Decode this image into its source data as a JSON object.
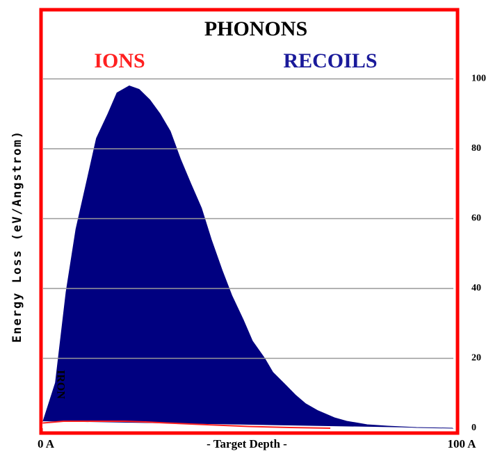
{
  "chart_data": {
    "type": "area",
    "title": "PHONONS",
    "ylabel": "Energy Loss (eV/Angstrom)",
    "xlabel": "- Target Depth -",
    "annotation": "IRON",
    "xlim": [
      0,
      100
    ],
    "xticks": [
      {
        "value": 0,
        "label": "0 A"
      },
      {
        "value": 100,
        "label": "100 A"
      }
    ],
    "ylim": [
      0,
      119
    ],
    "yticks": [
      0,
      20,
      40,
      60,
      80,
      100
    ],
    "grid": true,
    "series": [
      {
        "name": "IONS",
        "color": "#ff2020",
        "kind": "line",
        "x": [
          0,
          5,
          10,
          20,
          25,
          30,
          40,
          50,
          60,
          70
        ],
        "values": [
          1.5,
          2,
          2,
          2,
          1.8,
          1.5,
          1,
          0.5,
          0.2,
          0
        ]
      },
      {
        "name": "RECOILS",
        "color": "#000080",
        "kind": "area",
        "x": [
          0,
          3,
          5.6,
          8,
          10.7,
          13,
          15.8,
          18,
          21,
          23.4,
          26,
          28.5,
          31,
          33.5,
          36,
          38.6,
          41,
          43.7,
          46,
          48.8,
          51,
          54,
          56,
          59,
          61.5,
          64,
          67,
          71,
          74,
          79,
          84,
          91,
          100
        ],
        "values": [
          2,
          13,
          39,
          57,
          71,
          83,
          90,
          96,
          98,
          97,
          94,
          90,
          85,
          77,
          70,
          63,
          54,
          45,
          38,
          31,
          25,
          20,
          16,
          12.5,
          9.5,
          7,
          5,
          3,
          2,
          1,
          0.6,
          0.2,
          0
        ]
      }
    ]
  }
}
